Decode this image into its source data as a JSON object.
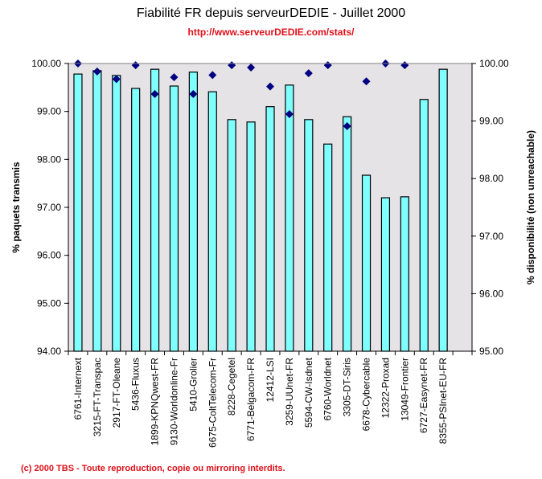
{
  "chart_data": {
    "type": "bar",
    "title": "Fiabilité FR depuis serveurDEDIE - Juillet 2000",
    "subtitle": "http://www.serveurDEDIE.com/stats/",
    "footer": "(c) 2000 TBS - Toute reproduction, copie ou mirroring interdits.",
    "xlabel": "",
    "ylabel": "% paquets transmis",
    "y2label": "% disponibilité (non unreachable)",
    "ylim": [
      94,
      100
    ],
    "y2lim": [
      95,
      100
    ],
    "yticks": [
      "94.00",
      "95.00",
      "96.00",
      "97.00",
      "98.00",
      "99.00",
      "100.00"
    ],
    "y2ticks": [
      "95.00",
      "96.00",
      "97.00",
      "98.00",
      "99.00",
      "100.00"
    ],
    "grid": false,
    "legend": "none",
    "categories": [
      "6761-Internext",
      "3215-FT-Transpac",
      "2917-FT-Oleane",
      "5436-Fluxus",
      "1899-KPNQwest-FR",
      "9130-Worldonline-Fr",
      "5410-Grolier",
      "6675-ColtTelecom-Fr",
      "8228-Cegetel",
      "6771-Belgacom-FR",
      "12412-LSI",
      "3259-UUnet-FR",
      "5594-CW-Isdnet",
      "6760-Worldnet",
      "3305-DT-Siris",
      "6678-Cybercable",
      "12322-Proxad",
      "13049-Frontier",
      "6727-Easynet-FR",
      "8355-PSInet-EU-FR"
    ],
    "series": [
      {
        "name": "% paquets transmis",
        "type": "bar",
        "axis": "left",
        "color": "#80ffff",
        "values": [
          99.78,
          99.85,
          99.75,
          99.48,
          99.88,
          99.53,
          99.82,
          99.41,
          98.83,
          98.78,
          99.1,
          99.55,
          98.83,
          98.32,
          98.89,
          97.67,
          97.2,
          97.22,
          99.25,
          99.88
        ]
      },
      {
        "name": "% disponibilité (non unreachable)",
        "type": "scatter",
        "marker": "diamond",
        "axis": "right",
        "color": "#000080",
        "values": [
          100.0,
          99.86,
          99.73,
          99.97,
          99.47,
          99.76,
          99.47,
          99.8,
          99.97,
          99.93,
          99.6,
          99.12,
          99.83,
          99.97,
          98.91,
          99.69,
          100.0,
          99.97,
          null,
          null
        ]
      }
    ]
  },
  "colors": {
    "plot_background": "#e6e3e6",
    "title_accent": "#e0101a"
  }
}
